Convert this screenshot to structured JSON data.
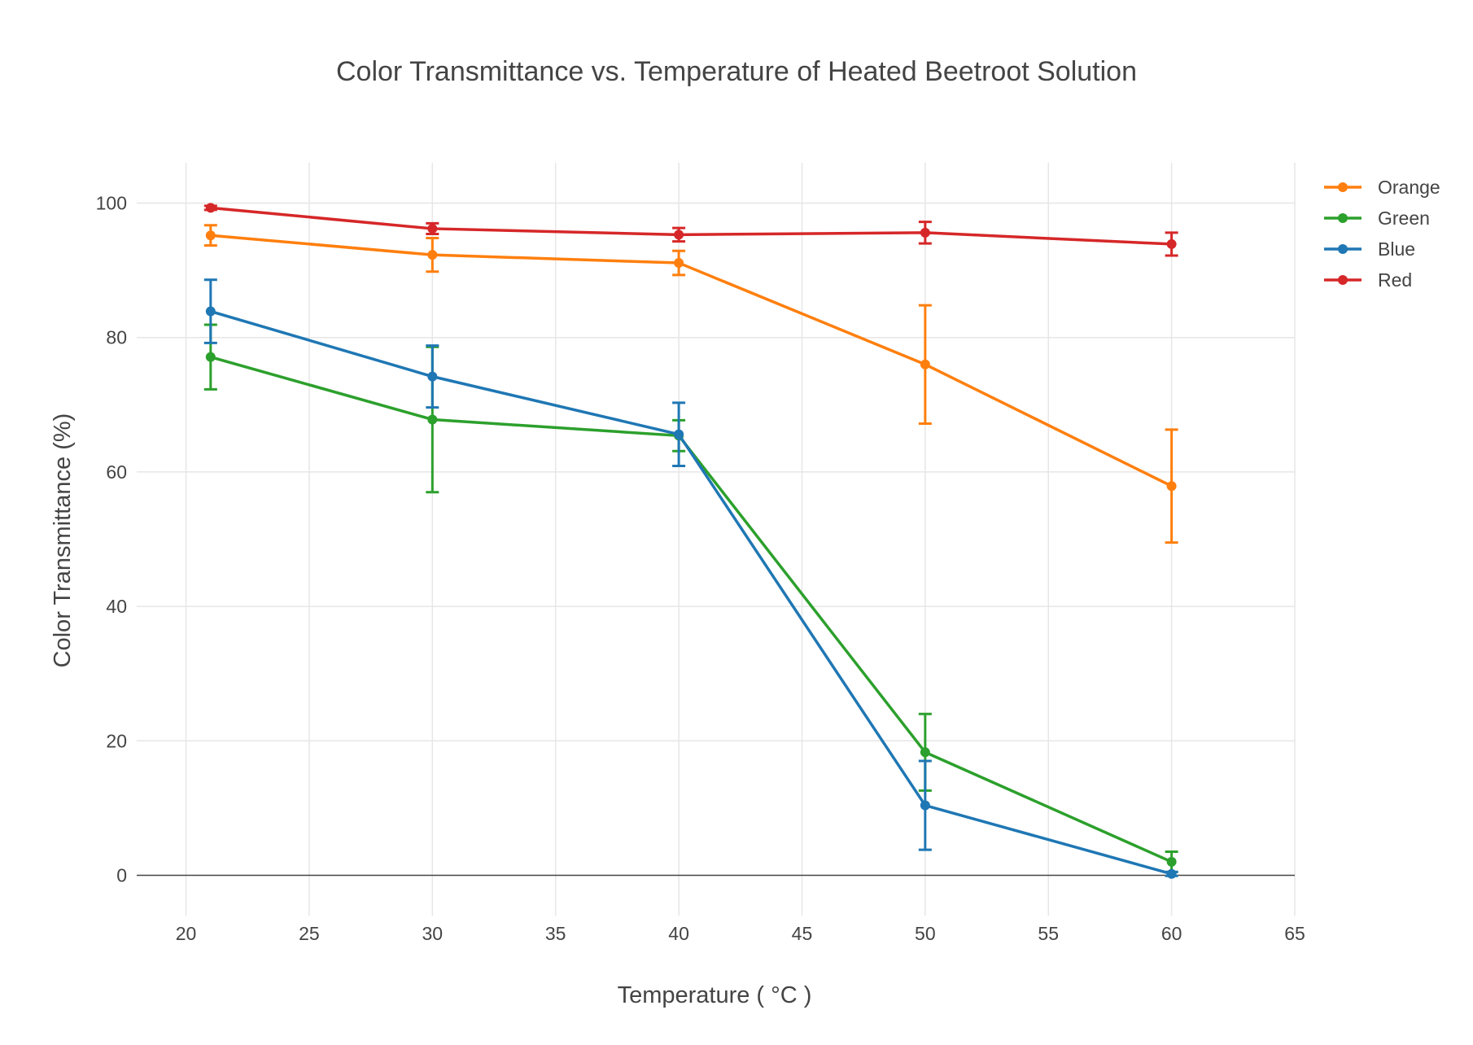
{
  "chart_data": {
    "type": "line",
    "title": "Color Transmittance vs. Temperature of Heated Beetroot Solution",
    "xlabel": "Temperature ( °C )",
    "ylabel": "Color Transmittance (%)",
    "xlim": [
      18,
      65
    ],
    "ylim": [
      -6,
      106
    ],
    "x_ticks": [
      20,
      25,
      30,
      35,
      40,
      45,
      50,
      55,
      60,
      65
    ],
    "y_ticks": [
      0,
      20,
      40,
      60,
      80,
      100
    ],
    "grid": true,
    "legend_position": "top-right",
    "x": [
      21,
      30,
      40,
      50,
      60
    ],
    "series": [
      {
        "name": "Orange",
        "color": "#ff7f0e",
        "values": [
          95.2,
          92.3,
          91.1,
          76.0,
          57.9
        ],
        "error": [
          1.5,
          2.5,
          1.8,
          8.8,
          8.4
        ]
      },
      {
        "name": "Green",
        "color": "#2ca02c",
        "values": [
          77.1,
          67.8,
          65.4,
          18.3,
          2.0
        ],
        "error": [
          4.8,
          10.8,
          2.3,
          5.7,
          1.5
        ]
      },
      {
        "name": "Blue",
        "color": "#1f77b4",
        "values": [
          83.9,
          74.2,
          65.6,
          10.4,
          0.2
        ],
        "error": [
          4.7,
          4.6,
          4.7,
          6.6,
          0.3
        ]
      },
      {
        "name": "Red",
        "color": "#d62728",
        "values": [
          99.3,
          96.2,
          95.3,
          95.6,
          93.9
        ],
        "error": [
          0.3,
          0.8,
          1.0,
          1.6,
          1.7
        ]
      }
    ]
  }
}
